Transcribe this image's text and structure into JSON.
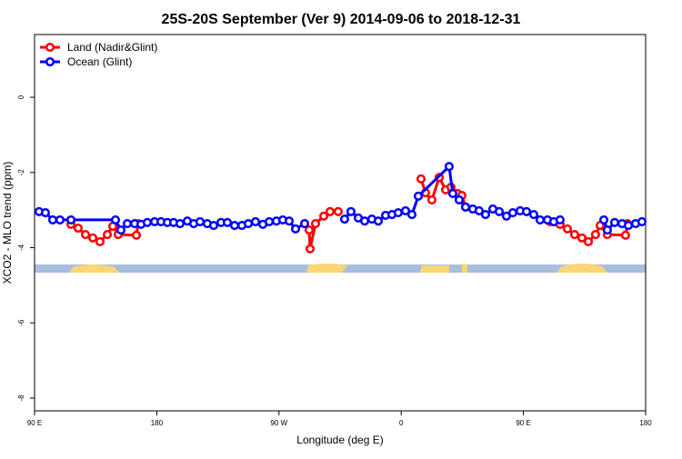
{
  "chart_data": {
    "type": "line",
    "title": "25S-20S September (Ver 9)   2014-09-06 to 2018-12-31",
    "xlabel": "Longitude (deg E)",
    "ylabel": "XCO2 - MLO trend (ppm)",
    "xlim": [
      90,
      540
    ],
    "xticks": [
      {
        "value": 90,
        "label": "90 E"
      },
      180,
      {
        "value": 270,
        "label": "90 W"
      },
      {
        "value": 360,
        "label": "0"
      },
      {
        "value": 450,
        "label": "90 E"
      },
      {
        "value": 540,
        "label": "180"
      }
    ],
    "ylim": [
      -8.34,
      1.67
    ],
    "yticks": [
      0,
      -2,
      -4,
      -6,
      -8
    ],
    "legend": "top-left",
    "series": [
      {
        "name": "Land (Nadir&Glint)",
        "color": "#ff0000",
        "x": [
          116.8,
          122.1,
          127.5,
          132.9,
          138.2,
          143.6,
          147.6,
          151.6,
          165.0,
          166.3,
          null,
          288.9,
          292.2,
          292.9,
          296.9,
          303.0,
          307.6,
          313.6,
          null,
          374.6,
          377.9,
          382.6,
          388.0,
          392.7,
          396.7,
          401.4,
          404.7,
          407.4,
          null,
          469.7,
          477.0,
          482.4,
          487.7,
          493.1,
          497.8,
          503.1,
          506.5,
          511.8,
          525.2,
          526.6
        ],
        "values": [
          -3.38,
          -3.48,
          -3.65,
          -3.74,
          -3.84,
          -3.65,
          -3.43,
          -3.65,
          -3.67,
          -3.36,
          null,
          -3.36,
          -3.53,
          -4.03,
          -3.36,
          -3.16,
          -3.04,
          -3.04,
          null,
          -2.17,
          -2.54,
          -2.73,
          -2.13,
          -2.46,
          -2.39,
          -2.56,
          -2.61,
          -2.92,
          null,
          -3.31,
          -3.38,
          -3.5,
          -3.65,
          -3.74,
          -3.84,
          -3.65,
          -3.41,
          -3.65,
          -3.67,
          -3.36
        ]
      },
      {
        "name": "Ocean (Glint)",
        "color": "#0000ff",
        "x": [
          93.3,
          98.0,
          103.4,
          108.7,
          116.8,
          149.6,
          153.6,
          158.3,
          163.7,
          168.4,
          173.0,
          178.4,
          183.1,
          187.8,
          192.4,
          197.1,
          202.5,
          207.2,
          211.9,
          217.2,
          221.9,
          227.3,
          232.0,
          237.3,
          242.7,
          247.4,
          252.7,
          258.1,
          262.8,
          268.1,
          272.8,
          277.5,
          282.2,
          288.9,
          null,
          318.3,
          323.0,
          328.4,
          333.1,
          338.4,
          343.1,
          348.5,
          353.2,
          357.8,
          363.2,
          367.9,
          372.6,
          395.3,
          398.0,
          402.7,
          407.4,
          412.7,
          417.4,
          422.1,
          427.5,
          432.2,
          437.5,
          442.2,
          447.6,
          452.3,
          457.6,
          462.3,
          467.7,
          472.3,
          477.0,
          null,
          509.2,
          511.8,
          517.2,
          522.6,
          527.3,
          532.6,
          537.3
        ],
        "values": [
          -3.04,
          -3.07,
          -3.26,
          -3.26,
          -3.26,
          -3.26,
          -3.53,
          -3.36,
          -3.36,
          -3.38,
          -3.33,
          -3.31,
          -3.31,
          -3.33,
          -3.33,
          -3.36,
          -3.29,
          -3.36,
          -3.31,
          -3.36,
          -3.41,
          -3.33,
          -3.33,
          -3.41,
          -3.41,
          -3.36,
          -3.31,
          -3.38,
          -3.31,
          -3.29,
          -3.26,
          -3.29,
          -3.5,
          -3.36,
          null,
          -3.24,
          -3.04,
          -3.21,
          -3.29,
          -3.24,
          -3.29,
          -3.14,
          -3.12,
          -3.07,
          -3.02,
          -3.12,
          -2.63,
          -1.84,
          -2.56,
          -2.73,
          -2.92,
          -2.97,
          -3.02,
          -3.12,
          -2.97,
          -3.04,
          -3.16,
          -3.07,
          -3.02,
          -3.04,
          -3.12,
          -3.26,
          -3.26,
          -3.31,
          -3.26,
          null,
          -3.26,
          -3.53,
          -3.33,
          -3.36,
          -3.41,
          -3.36,
          -3.31
        ]
      }
    ]
  }
}
